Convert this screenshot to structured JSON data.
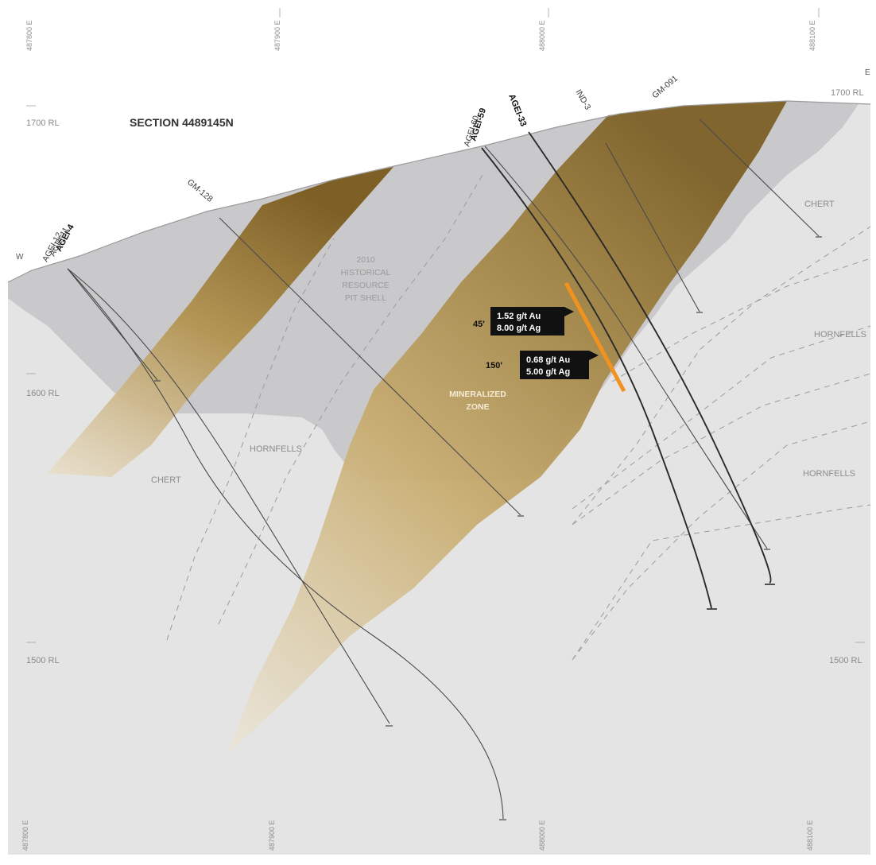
{
  "title": "SECTION 4489145N",
  "colors": {
    "background": "#e4e4e4",
    "pit_shell": "#c9c9cc",
    "mineralized_dark": "#8b6e32",
    "mineralized_light": "#c8ad74",
    "high_grade_interval": "#f2921e",
    "drill_trace": "#333333"
  },
  "easting_labels": [
    "487800 E",
    "487900 E",
    "488000 E",
    "488100 E"
  ],
  "rl_labels": {
    "left": [
      "1700 RL",
      "1600 RL",
      "1500 RL"
    ],
    "right": [
      "1700 RL",
      "1500 RL"
    ]
  },
  "compass": {
    "west": "W",
    "east": "E"
  },
  "lithology": {
    "chert_left": "CHERT",
    "chert_right": "CHERT",
    "hornfells_center": "HORNFELLS",
    "hornfells_right_upper": "HORNFELLS",
    "hornfells_right_lower": "HORNFELLS"
  },
  "pit_shell_label": [
    "2010",
    "HISTORICAL",
    "RESOURCE",
    "PIT SHELL"
  ],
  "zone_label": [
    "MINERALIZED",
    "ZONE"
  ],
  "drill_holes": {
    "ageI4": "AGEI-4",
    "ageI11": "AGEI-11",
    "ageI12": "AGEI-12",
    "gm128": "GM-128",
    "ageI59": "AGEI-59",
    "ageI60": "AGEI-60",
    "ageI33": "AGEI-33",
    "ind3": "IND-3",
    "gm091": "GM-091"
  },
  "intercepts": [
    {
      "interval": "45'",
      "au": "1.52 g/t Au",
      "ag": "8.00 g/t Ag"
    },
    {
      "interval": "150'",
      "au": "0.68 g/t Au",
      "ag": "5.00 g/t Ag"
    }
  ]
}
